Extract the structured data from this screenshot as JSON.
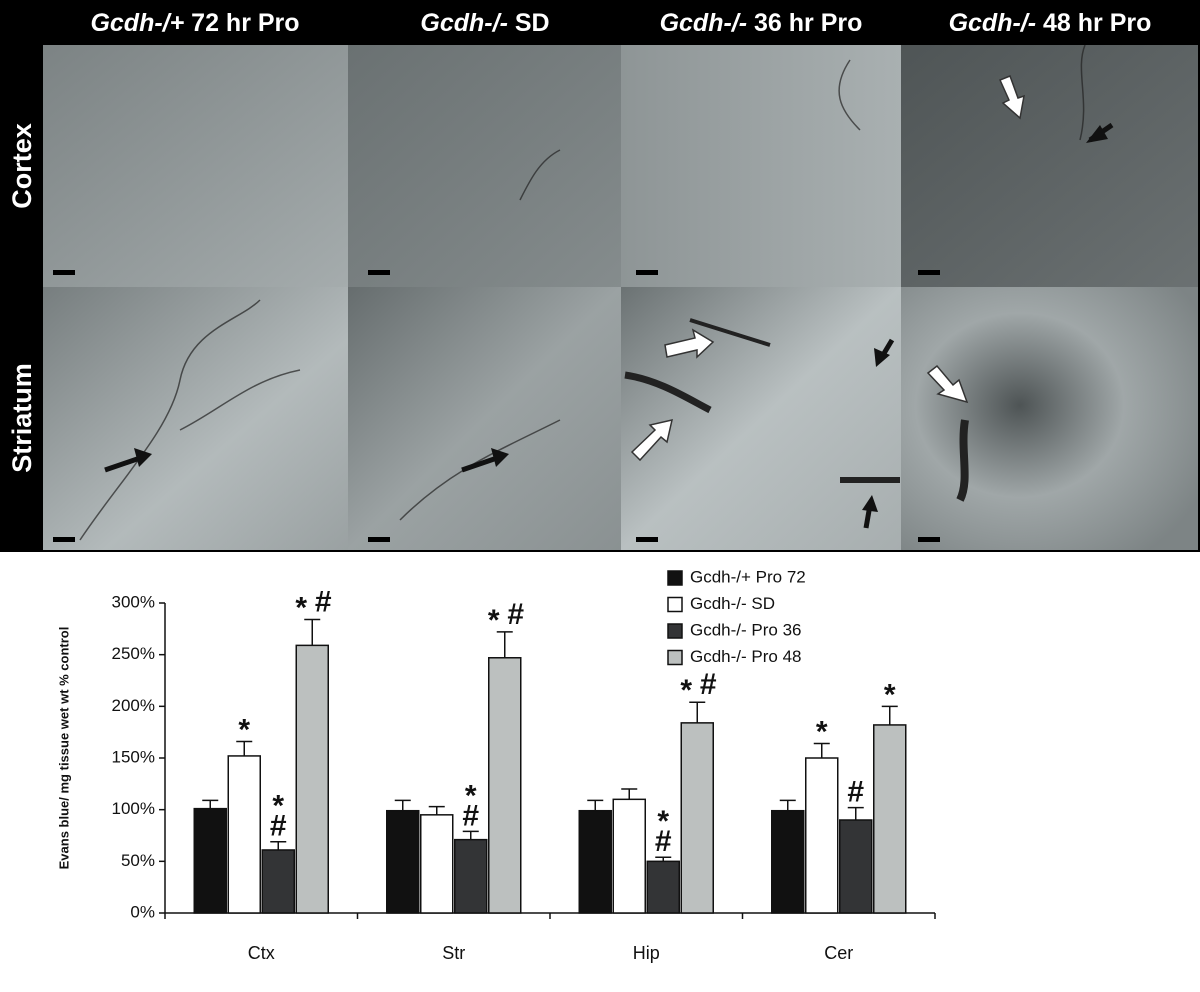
{
  "panel": {
    "columns": [
      {
        "gene": "Gcdh-/+",
        "condition": "72 hr Pro"
      },
      {
        "gene": "Gcdh-/-",
        "condition": "SD"
      },
      {
        "gene": "Gcdh-/-",
        "condition": "36 hr Pro"
      },
      {
        "gene": "Gcdh-/-",
        "condition": "48 hr Pro"
      }
    ],
    "rows": [
      "Cortex",
      "Striatum"
    ]
  },
  "chart_data": {
    "type": "bar",
    "ylabel": "Evans blue/ mg tissue wet wt % control",
    "categories": [
      "Ctx",
      "Str",
      "Hip",
      "Cer"
    ],
    "ylim": [
      0,
      300
    ],
    "yticks": [
      {
        "value": 0,
        "label": "0%"
      },
      {
        "value": 50,
        "label": "50%"
      },
      {
        "value": 100,
        "label": "100%"
      },
      {
        "value": 150,
        "label": "150%"
      },
      {
        "value": 200,
        "label": "200%"
      },
      {
        "value": 250,
        "label": "250%"
      },
      {
        "value": 300,
        "label": "300%"
      }
    ],
    "series": [
      {
        "name": "Gcdh-/+ Pro 72",
        "color": "#111111",
        "values": [
          101,
          99,
          99,
          99
        ],
        "errors": [
          8,
          10,
          10,
          10
        ],
        "annotations": [
          null,
          null,
          null,
          null
        ]
      },
      {
        "name": "Gcdh-/- SD",
        "color": "#ffffff",
        "values": [
          152,
          95,
          110,
          150
        ],
        "errors": [
          14,
          8,
          10,
          14
        ],
        "annotations": [
          [
            "*"
          ],
          null,
          null,
          [
            "*"
          ]
        ]
      },
      {
        "name": "Gcdh-/- Pro 36",
        "color": "#333436",
        "values": [
          61,
          71,
          50,
          90
        ],
        "errors": [
          8,
          8,
          4,
          12
        ],
        "annotations": [
          [
            "*",
            "#"
          ],
          [
            "*",
            "#"
          ],
          [
            "*",
            "#"
          ],
          [
            "#"
          ]
        ]
      },
      {
        "name": "Gcdh-/- Pro 48",
        "color": "#bcc0bf",
        "values": [
          259,
          247,
          184,
          182
        ],
        "errors": [
          25,
          25,
          20,
          18
        ],
        "annotations": [
          [
            "*",
            "#"
          ],
          [
            "*",
            "#"
          ],
          [
            "*",
            "#"
          ],
          [
            "*"
          ]
        ]
      }
    ],
    "legend": "top-right"
  }
}
